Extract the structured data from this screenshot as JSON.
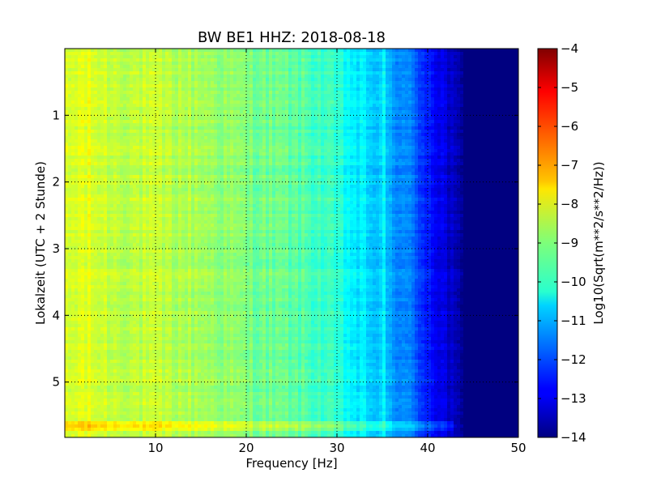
{
  "chart_data": {
    "type": "heatmap",
    "title": "BW BE1 HHZ: 2018-08-18",
    "xlabel": "Frequency [Hz]",
    "ylabel": "Lokalzeit (UTC + 2 Stunde)",
    "xlim": [
      0,
      50
    ],
    "ylim": [
      0,
      5.83
    ],
    "y_inverted": true,
    "xticks": [
      "10",
      "20",
      "30",
      "40",
      "50"
    ],
    "yticks": [
      "1",
      "2",
      "3",
      "4",
      "5"
    ],
    "grid": true,
    "colormap": "jet",
    "colorbar": {
      "label": "Log10(Sqrt(m**2/s**2/Hz))",
      "range": [
        -14,
        -4
      ],
      "ticks": [
        "-4",
        "-5",
        "-6",
        "-7",
        "-8",
        "-9",
        "-10",
        "-11",
        "-12",
        "-13",
        "-14"
      ]
    },
    "freq_profile_hz": [
      0,
      2,
      5,
      10,
      15,
      20,
      25,
      28,
      30,
      32,
      34,
      36,
      38,
      40,
      42,
      44,
      46,
      50
    ],
    "freq_profile_log10": [
      -8.3,
      -8.0,
      -8.3,
      -8.4,
      -8.6,
      -9.0,
      -9.3,
      -9.6,
      -9.9,
      -10.4,
      -10.7,
      -11.1,
      -11.6,
      -12.4,
      -13.1,
      -14.0,
      -14.0,
      -14.0
    ],
    "spectral_line_hz": 35.2,
    "strong_band_hours": 5.65,
    "strong_band_extent_hz": [
      0,
      43
    ]
  }
}
